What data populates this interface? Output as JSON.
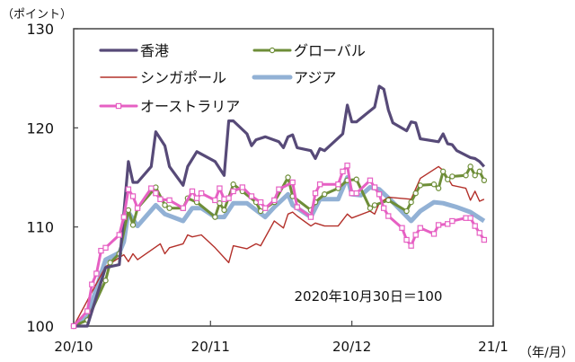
{
  "chart_data": {
    "type": "line",
    "ylabel": "（ポイント）",
    "xunit_label": "（年/月）",
    "annotation": "2020年10月30日＝100",
    "ylim": [
      100,
      130
    ],
    "yticks": [
      100,
      110,
      120,
      130
    ],
    "xlim": [
      "2020-10-30",
      "2021-01-30"
    ],
    "xticks": [
      {
        "date": "2020-10-30",
        "label": "20/10"
      },
      {
        "date": "2020-11-29",
        "label": "20/11"
      },
      {
        "date": "2020-12-30",
        "label": "20/12"
      },
      {
        "date": "2021-01-30",
        "label": "21/1"
      }
    ],
    "grid": false,
    "legend_placement": "top-left, inside",
    "series": [
      {
        "name": "香港",
        "color": "#574a78",
        "marker": "none",
        "data": [
          [
            "2020-10-30",
            100.0
          ],
          [
            "2020-11-02",
            100.0
          ],
          [
            "2020-11-06",
            105.9
          ],
          [
            "2020-11-09",
            106.2
          ],
          [
            "2020-11-11",
            116.6
          ],
          [
            "2020-11-12",
            114.5
          ],
          [
            "2020-11-13",
            114.5
          ],
          [
            "2020-11-16",
            116.1
          ],
          [
            "2020-11-17",
            119.6
          ],
          [
            "2020-11-19",
            118.2
          ],
          [
            "2020-11-20",
            116.1
          ],
          [
            "2020-11-23",
            114.2
          ],
          [
            "2020-11-24",
            116.1
          ],
          [
            "2020-11-26",
            117.6
          ],
          [
            "2020-11-30",
            116.6
          ],
          [
            "2020-12-02",
            115.2
          ],
          [
            "2020-12-03",
            120.7
          ],
          [
            "2020-12-04",
            120.7
          ],
          [
            "2020-12-07",
            119.4
          ],
          [
            "2020-12-08",
            118.2
          ],
          [
            "2020-12-09",
            118.8
          ],
          [
            "2020-12-11",
            119.1
          ],
          [
            "2020-12-14",
            118.6
          ],
          [
            "2020-12-15",
            118.0
          ],
          [
            "2020-12-16",
            119.1
          ],
          [
            "2020-12-17",
            119.3
          ],
          [
            "2020-12-18",
            118.0
          ],
          [
            "2020-12-21",
            117.7
          ],
          [
            "2020-12-22",
            116.9
          ],
          [
            "2020-12-23",
            117.9
          ],
          [
            "2020-12-24",
            117.7
          ],
          [
            "2020-12-28",
            119.4
          ],
          [
            "2020-12-29",
            122.3
          ],
          [
            "2020-12-30",
            120.6
          ],
          [
            "2020-12-31",
            120.6
          ],
          [
            "2021-01-04",
            122.1
          ],
          [
            "2021-01-05",
            124.2
          ],
          [
            "2021-01-06",
            123.9
          ],
          [
            "2021-01-07",
            121.8
          ],
          [
            "2021-01-08",
            120.5
          ],
          [
            "2021-01-11",
            119.7
          ],
          [
            "2021-01-12",
            120.6
          ],
          [
            "2021-01-13",
            120.5
          ],
          [
            "2021-01-14",
            118.9
          ],
          [
            "2021-01-18",
            118.6
          ],
          [
            "2021-01-19",
            119.4
          ],
          [
            "2021-01-20",
            118.4
          ],
          [
            "2021-01-21",
            118.3
          ],
          [
            "2021-01-22",
            117.7
          ],
          [
            "2021-01-25",
            117.0
          ],
          [
            "2021-01-26",
            116.9
          ],
          [
            "2021-01-27",
            116.6
          ],
          [
            "2021-01-28",
            116.1
          ]
        ]
      },
      {
        "name": "グローバル",
        "color": "#6e8e38",
        "marker": "circle",
        "data": [
          [
            "2020-10-30",
            100.0
          ],
          [
            "2020-11-02",
            100.6
          ],
          [
            "2020-11-06",
            104.6
          ],
          [
            "2020-11-07",
            106.4
          ],
          [
            "2020-11-09",
            107.3
          ],
          [
            "2020-11-11",
            111.7
          ],
          [
            "2020-11-12",
            110.2
          ],
          [
            "2020-11-13",
            111.9
          ],
          [
            "2020-11-17",
            114.0
          ],
          [
            "2020-11-19",
            112.2
          ],
          [
            "2020-11-20",
            111.9
          ],
          [
            "2020-11-23",
            111.9
          ],
          [
            "2020-11-24",
            112.9
          ],
          [
            "2020-11-26",
            112.5
          ],
          [
            "2020-11-30",
            111.0
          ],
          [
            "2020-12-01",
            112.4
          ],
          [
            "2020-12-02",
            111.7
          ],
          [
            "2020-12-04",
            114.3
          ],
          [
            "2020-12-06",
            113.6
          ],
          [
            "2020-12-09",
            112.5
          ],
          [
            "2020-12-10",
            111.6
          ],
          [
            "2020-12-13",
            112.5
          ],
          [
            "2020-12-16",
            115.0
          ],
          [
            "2020-12-17",
            113.1
          ],
          [
            "2020-12-21",
            111.7
          ],
          [
            "2020-12-22",
            112.5
          ],
          [
            "2020-12-24",
            113.3
          ],
          [
            "2020-12-27",
            113.9
          ],
          [
            "2020-12-29",
            114.7
          ],
          [
            "2020-12-31",
            114.8
          ],
          [
            "2021-01-03",
            111.9
          ],
          [
            "2021-01-04",
            112.2
          ],
          [
            "2021-01-07",
            112.7
          ],
          [
            "2021-01-11",
            111.6
          ],
          [
            "2021-01-12",
            112.5
          ],
          [
            "2021-01-13",
            113.4
          ],
          [
            "2021-01-14",
            114.2
          ],
          [
            "2021-01-17",
            114.3
          ],
          [
            "2021-01-18",
            113.9
          ],
          [
            "2021-01-19",
            115.6
          ],
          [
            "2021-01-20",
            114.8
          ],
          [
            "2021-01-21",
            115.1
          ],
          [
            "2021-01-24",
            115.2
          ],
          [
            "2021-01-25",
            116.1
          ],
          [
            "2021-01-26",
            115.2
          ],
          [
            "2021-01-27",
            115.6
          ],
          [
            "2021-01-28",
            114.7
          ]
        ]
      },
      {
        "name": "シンガポール",
        "color": "#b3302a",
        "marker": "none",
        "data": [
          [
            "2020-10-30",
            100.0
          ],
          [
            "2020-11-06",
            106.0
          ],
          [
            "2020-11-10",
            107.2
          ],
          [
            "2020-11-11",
            106.5
          ],
          [
            "2020-11-12",
            107.3
          ],
          [
            "2020-11-13",
            106.7
          ],
          [
            "2020-11-18",
            108.3
          ],
          [
            "2020-11-19",
            107.3
          ],
          [
            "2020-11-20",
            107.9
          ],
          [
            "2020-11-23",
            108.3
          ],
          [
            "2020-11-24",
            109.2
          ],
          [
            "2020-11-25",
            109.0
          ],
          [
            "2020-11-27",
            109.2
          ],
          [
            "2020-11-30",
            107.9
          ],
          [
            "2020-12-03",
            106.4
          ],
          [
            "2020-12-04",
            108.1
          ],
          [
            "2020-12-07",
            107.8
          ],
          [
            "2020-12-09",
            108.3
          ],
          [
            "2020-12-10",
            108.1
          ],
          [
            "2020-12-13",
            110.6
          ],
          [
            "2020-12-15",
            109.9
          ],
          [
            "2020-12-16",
            111.3
          ],
          [
            "2020-12-17",
            111.5
          ],
          [
            "2020-12-18",
            111.1
          ],
          [
            "2020-12-21",
            110.1
          ],
          [
            "2020-12-22",
            110.4
          ],
          [
            "2020-12-24",
            110.1
          ],
          [
            "2020-12-27",
            110.1
          ],
          [
            "2020-12-29",
            111.3
          ],
          [
            "2020-12-30",
            110.9
          ],
          [
            "2021-01-03",
            111.6
          ],
          [
            "2021-01-04",
            111.3
          ],
          [
            "2021-01-05",
            112.4
          ],
          [
            "2021-01-07",
            113.0
          ],
          [
            "2021-01-12",
            112.8
          ],
          [
            "2021-01-14",
            114.9
          ],
          [
            "2021-01-18",
            116.1
          ],
          [
            "2021-01-19",
            115.7
          ],
          [
            "2021-01-21",
            114.2
          ],
          [
            "2021-01-24",
            113.9
          ],
          [
            "2021-01-25",
            112.7
          ],
          [
            "2021-01-26",
            113.6
          ],
          [
            "2021-01-27",
            112.6
          ],
          [
            "2021-01-28",
            112.8
          ]
        ]
      },
      {
        "name": "アジア",
        "color": "#92b1d5",
        "marker": "none",
        "data": [
          [
            "2020-10-30",
            100.0
          ],
          [
            "2020-11-02",
            100.9
          ],
          [
            "2020-11-06",
            106.7
          ],
          [
            "2020-11-09",
            107.4
          ],
          [
            "2020-11-10",
            108.5
          ],
          [
            "2020-11-11",
            111.5
          ],
          [
            "2020-11-13",
            110.1
          ],
          [
            "2020-11-17",
            112.2
          ],
          [
            "2020-11-19",
            111.3
          ],
          [
            "2020-11-23",
            110.6
          ],
          [
            "2020-11-25",
            111.9
          ],
          [
            "2020-11-27",
            111.9
          ],
          [
            "2020-11-30",
            111.0
          ],
          [
            "2020-12-02",
            111.0
          ],
          [
            "2020-12-04",
            112.4
          ],
          [
            "2020-12-07",
            112.4
          ],
          [
            "2020-12-11",
            111.0
          ],
          [
            "2020-12-13",
            112.0
          ],
          [
            "2020-12-16",
            113.3
          ],
          [
            "2020-12-17",
            112.2
          ],
          [
            "2020-12-21",
            111.0
          ],
          [
            "2020-12-23",
            112.8
          ],
          [
            "2020-12-27",
            112.8
          ],
          [
            "2020-12-29",
            115.0
          ],
          [
            "2020-12-30",
            113.3
          ],
          [
            "2021-01-01",
            113.2
          ],
          [
            "2021-01-03",
            114.0
          ],
          [
            "2021-01-05",
            113.8
          ],
          [
            "2021-01-08",
            112.5
          ],
          [
            "2021-01-12",
            110.6
          ],
          [
            "2021-01-14",
            111.6
          ],
          [
            "2021-01-17",
            112.5
          ],
          [
            "2021-01-19",
            112.4
          ],
          [
            "2021-01-22",
            112.0
          ],
          [
            "2021-01-25",
            111.5
          ],
          [
            "2021-01-28",
            110.6
          ]
        ]
      },
      {
        "name": "オーストラリア",
        "color": "#e660c3",
        "marker": "square",
        "data": [
          [
            "2020-10-30",
            100.0
          ],
          [
            "2020-11-02",
            101.5
          ],
          [
            "2020-11-03",
            104.2
          ],
          [
            "2020-11-04",
            105.3
          ],
          [
            "2020-11-05",
            107.6
          ],
          [
            "2020-11-06",
            107.9
          ],
          [
            "2020-11-09",
            109.2
          ],
          [
            "2020-11-10",
            111.0
          ],
          [
            "2020-11-11",
            113.8
          ],
          [
            "2020-11-12",
            113.1
          ],
          [
            "2020-11-13",
            111.9
          ],
          [
            "2020-11-16",
            113.9
          ],
          [
            "2020-11-17",
            113.4
          ],
          [
            "2020-11-18",
            112.8
          ],
          [
            "2020-11-20",
            112.7
          ],
          [
            "2020-11-23",
            111.9
          ],
          [
            "2020-11-25",
            113.6
          ],
          [
            "2020-11-26",
            112.9
          ],
          [
            "2020-11-27",
            113.4
          ],
          [
            "2020-11-30",
            112.7
          ],
          [
            "2020-12-01",
            113.9
          ],
          [
            "2020-12-02",
            112.8
          ],
          [
            "2020-12-03",
            112.9
          ],
          [
            "2020-12-04",
            113.6
          ],
          [
            "2020-12-06",
            114.0
          ],
          [
            "2020-12-08",
            113.1
          ],
          [
            "2020-12-10",
            112.5
          ],
          [
            "2020-12-11",
            111.9
          ],
          [
            "2020-12-13",
            112.7
          ],
          [
            "2020-12-14",
            113.8
          ],
          [
            "2020-12-17",
            114.5
          ],
          [
            "2020-12-18",
            112.0
          ],
          [
            "2020-12-21",
            111.0
          ],
          [
            "2020-12-22",
            113.4
          ],
          [
            "2020-12-23",
            114.3
          ],
          [
            "2020-12-27",
            114.3
          ],
          [
            "2020-12-28",
            115.6
          ],
          [
            "2020-12-29",
            116.2
          ],
          [
            "2020-12-30",
            113.4
          ],
          [
            "2020-12-31",
            113.4
          ],
          [
            "2021-01-03",
            114.7
          ],
          [
            "2021-01-04",
            114.0
          ],
          [
            "2021-01-05",
            113.3
          ],
          [
            "2021-01-06",
            111.9
          ],
          [
            "2021-01-07",
            111.1
          ],
          [
            "2021-01-10",
            109.9
          ],
          [
            "2021-01-11",
            108.7
          ],
          [
            "2021-01-12",
            108.1
          ],
          [
            "2021-01-13",
            109.2
          ],
          [
            "2021-01-14",
            109.9
          ],
          [
            "2021-01-17",
            109.3
          ],
          [
            "2021-01-18",
            110.2
          ],
          [
            "2021-01-20",
            110.3
          ],
          [
            "2021-01-21",
            110.6
          ],
          [
            "2021-01-24",
            110.9
          ],
          [
            "2021-01-25",
            110.9
          ],
          [
            "2021-01-26",
            110.1
          ],
          [
            "2021-01-27",
            109.4
          ],
          [
            "2021-01-28",
            108.7
          ]
        ]
      }
    ]
  }
}
